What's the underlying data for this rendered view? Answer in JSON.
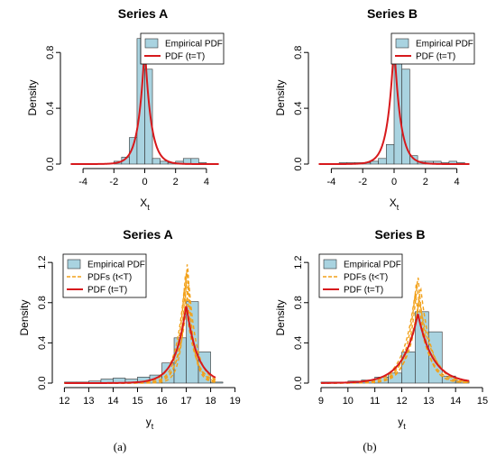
{
  "panel_labels": [
    "(a)",
    "(b)"
  ],
  "colors": {
    "hist_fill": "#a9d3e0",
    "hist_stroke": "#333333",
    "pdf_line": "#d7191c",
    "pdf_past_line": "#f2a11a",
    "axis": "#000000"
  },
  "chart_data": [
    {
      "type": "bar",
      "title": "Series A",
      "xlabel": "X",
      "xlabel_sub": "t",
      "ylabel": "Density",
      "xlim": [
        -5,
        5
      ],
      "ylim": [
        0,
        0.95
      ],
      "xticks": [
        -4,
        -2,
        0,
        2,
        4
      ],
      "yticks": [
        0.0,
        0.4,
        0.8
      ],
      "bins": [
        {
          "x0": -2.0,
          "x1": -1.5,
          "density": 0.02
        },
        {
          "x0": -1.5,
          "x1": -1.0,
          "density": 0.05
        },
        {
          "x0": -1.0,
          "x1": -0.5,
          "density": 0.19
        },
        {
          "x0": -0.5,
          "x1": 0.0,
          "density": 0.9
        },
        {
          "x0": 0.0,
          "x1": 0.5,
          "density": 0.68
        },
        {
          "x0": 0.5,
          "x1": 1.0,
          "density": 0.04
        },
        {
          "x0": 1.0,
          "x1": 1.5,
          "density": 0.02
        },
        {
          "x0": 1.5,
          "x1": 2.0,
          "density": 0.01
        },
        {
          "x0": 2.0,
          "x1": 2.5,
          "density": 0.02
        },
        {
          "x0": 2.5,
          "x1": 3.0,
          "density": 0.04
        },
        {
          "x0": 3.0,
          "x1": 3.5,
          "density": 0.04
        },
        {
          "x0": 3.5,
          "x1": 4.0,
          "density": 0.01
        }
      ],
      "pdf_main": {
        "center": 0.0,
        "peak": 0.86,
        "width": 0.4
      },
      "pdf_past": [],
      "pdf_range": [
        -4.8,
        4.8
      ],
      "legend": {
        "position": "top-right",
        "entries": [
          {
            "label": "Empirical PDF",
            "kind": "box"
          },
          {
            "label": "PDF (t=T)",
            "kind": "solid"
          }
        ]
      }
    },
    {
      "type": "bar",
      "title": "Series B",
      "xlabel": "X",
      "xlabel_sub": "t",
      "ylabel": "Density",
      "xlim": [
        -5,
        5
      ],
      "ylim": [
        0,
        0.95
      ],
      "xticks": [
        -4,
        -2,
        0,
        2,
        4
      ],
      "yticks": [
        0.0,
        0.4,
        0.8
      ],
      "bins": [
        {
          "x0": -3.5,
          "x1": -3.0,
          "density": 0.01
        },
        {
          "x0": -3.0,
          "x1": -2.5,
          "density": 0.01
        },
        {
          "x0": -2.5,
          "x1": -2.0,
          "density": 0.01
        },
        {
          "x0": -2.0,
          "x1": -1.5,
          "density": 0.01
        },
        {
          "x0": -1.5,
          "x1": -1.0,
          "density": 0.02
        },
        {
          "x0": -1.0,
          "x1": -0.5,
          "density": 0.04
        },
        {
          "x0": -0.5,
          "x1": 0.0,
          "density": 0.14
        },
        {
          "x0": 0.0,
          "x1": 0.5,
          "density": 0.9
        },
        {
          "x0": 0.5,
          "x1": 1.0,
          "density": 0.68
        },
        {
          "x0": 1.0,
          "x1": 1.5,
          "density": 0.06
        },
        {
          "x0": 1.5,
          "x1": 2.0,
          "density": 0.02
        },
        {
          "x0": 2.0,
          "x1": 2.5,
          "density": 0.02
        },
        {
          "x0": 2.5,
          "x1": 3.0,
          "density": 0.02
        },
        {
          "x0": 3.0,
          "x1": 3.5,
          "density": 0.01
        },
        {
          "x0": 3.5,
          "x1": 4.0,
          "density": 0.02
        },
        {
          "x0": 4.0,
          "x1": 4.5,
          "density": 0.01
        }
      ],
      "pdf_main": {
        "center": 0.0,
        "peak": 0.88,
        "width": 0.4
      },
      "pdf_past": [],
      "pdf_range": [
        -4.8,
        4.8
      ],
      "legend": {
        "position": "top-right",
        "entries": [
          {
            "label": "Empirical PDF",
            "kind": "box"
          },
          {
            "label": "PDF (t=T)",
            "kind": "solid"
          }
        ]
      }
    },
    {
      "type": "bar",
      "title": "Series A",
      "xlabel": "y",
      "xlabel_sub": "t",
      "ylabel": "Density",
      "xlim": [
        11.8,
        19.2
      ],
      "ylim": [
        0,
        1.3
      ],
      "xticks": [
        12,
        13,
        14,
        15,
        16,
        17,
        18,
        19
      ],
      "yticks": [
        0.0,
        0.4,
        0.8,
        1.2
      ],
      "bins": [
        {
          "x0": 12.0,
          "x1": 12.5,
          "density": 0.01
        },
        {
          "x0": 12.5,
          "x1": 13.0,
          "density": 0.01
        },
        {
          "x0": 13.0,
          "x1": 13.5,
          "density": 0.02
        },
        {
          "x0": 13.5,
          "x1": 14.0,
          "density": 0.04
        },
        {
          "x0": 14.0,
          "x1": 14.5,
          "density": 0.05
        },
        {
          "x0": 14.5,
          "x1": 15.0,
          "density": 0.04
        },
        {
          "x0": 15.0,
          "x1": 15.5,
          "density": 0.06
        },
        {
          "x0": 15.5,
          "x1": 16.0,
          "density": 0.08
        },
        {
          "x0": 16.0,
          "x1": 16.5,
          "density": 0.2
        },
        {
          "x0": 16.5,
          "x1": 17.0,
          "density": 0.45
        },
        {
          "x0": 17.0,
          "x1": 17.5,
          "density": 0.81
        },
        {
          "x0": 17.5,
          "x1": 18.0,
          "density": 0.31
        },
        {
          "x0": 18.0,
          "x1": 18.5,
          "density": 0.01
        }
      ],
      "pdf_main": {
        "center": 17.0,
        "peak": 0.78,
        "width": 0.45
      },
      "pdf_past": [
        {
          "center": 17.05,
          "peak": 1.25,
          "width": 0.22
        },
        {
          "center": 17.02,
          "peak": 1.18,
          "width": 0.26
        },
        {
          "center": 16.97,
          "peak": 1.1,
          "width": 0.3
        },
        {
          "center": 17.1,
          "peak": 1.02,
          "width": 0.33
        },
        {
          "center": 16.92,
          "peak": 0.95,
          "width": 0.36
        }
      ],
      "pdf_range": [
        12.0,
        18.2
      ],
      "legend": {
        "position": "top-left",
        "entries": [
          {
            "label": "Empirical PDF",
            "kind": "box"
          },
          {
            "label": "PDFs (t<T)",
            "kind": "dashed"
          },
          {
            "label": "PDF (t=T)",
            "kind": "solid"
          }
        ]
      }
    },
    {
      "type": "bar",
      "title": "Series B",
      "xlabel": "y",
      "xlabel_sub": "t",
      "ylabel": "Density",
      "xlim": [
        8.8,
        15.2
      ],
      "ylim": [
        0,
        1.3
      ],
      "xticks": [
        9,
        10,
        11,
        12,
        13,
        14,
        15
      ],
      "yticks": [
        0.0,
        0.4,
        0.8,
        1.2
      ],
      "bins": [
        {
          "x0": 9.0,
          "x1": 9.5,
          "density": 0.01
        },
        {
          "x0": 9.5,
          "x1": 10.0,
          "density": 0.01
        },
        {
          "x0": 10.0,
          "x1": 10.5,
          "density": 0.02
        },
        {
          "x0": 10.5,
          "x1": 11.0,
          "density": 0.03
        },
        {
          "x0": 11.0,
          "x1": 11.5,
          "density": 0.06
        },
        {
          "x0": 11.5,
          "x1": 12.0,
          "density": 0.1
        },
        {
          "x0": 12.0,
          "x1": 12.5,
          "density": 0.31
        },
        {
          "x0": 12.5,
          "x1": 13.0,
          "density": 0.71
        },
        {
          "x0": 13.0,
          "x1": 13.5,
          "density": 0.51
        },
        {
          "x0": 13.5,
          "x1": 14.0,
          "density": 0.07
        },
        {
          "x0": 14.0,
          "x1": 14.5,
          "density": 0.02
        }
      ],
      "pdf_main": {
        "center": 12.6,
        "peak": 0.69,
        "width": 0.55
      },
      "pdf_past": [
        {
          "center": 12.6,
          "peak": 1.08,
          "width": 0.32
        },
        {
          "center": 12.55,
          "peak": 1.02,
          "width": 0.36
        },
        {
          "center": 12.7,
          "peak": 0.96,
          "width": 0.4
        },
        {
          "center": 12.5,
          "peak": 0.9,
          "width": 0.44
        },
        {
          "center": 12.65,
          "peak": 0.84,
          "width": 0.48
        }
      ],
      "pdf_range": [
        9.0,
        14.5
      ],
      "legend": {
        "position": "top-left",
        "entries": [
          {
            "label": "Empirical PDF",
            "kind": "box"
          },
          {
            "label": "PDFs (t<T)",
            "kind": "dashed"
          },
          {
            "label": "PDF (t=T)",
            "kind": "solid"
          }
        ]
      }
    }
  ]
}
